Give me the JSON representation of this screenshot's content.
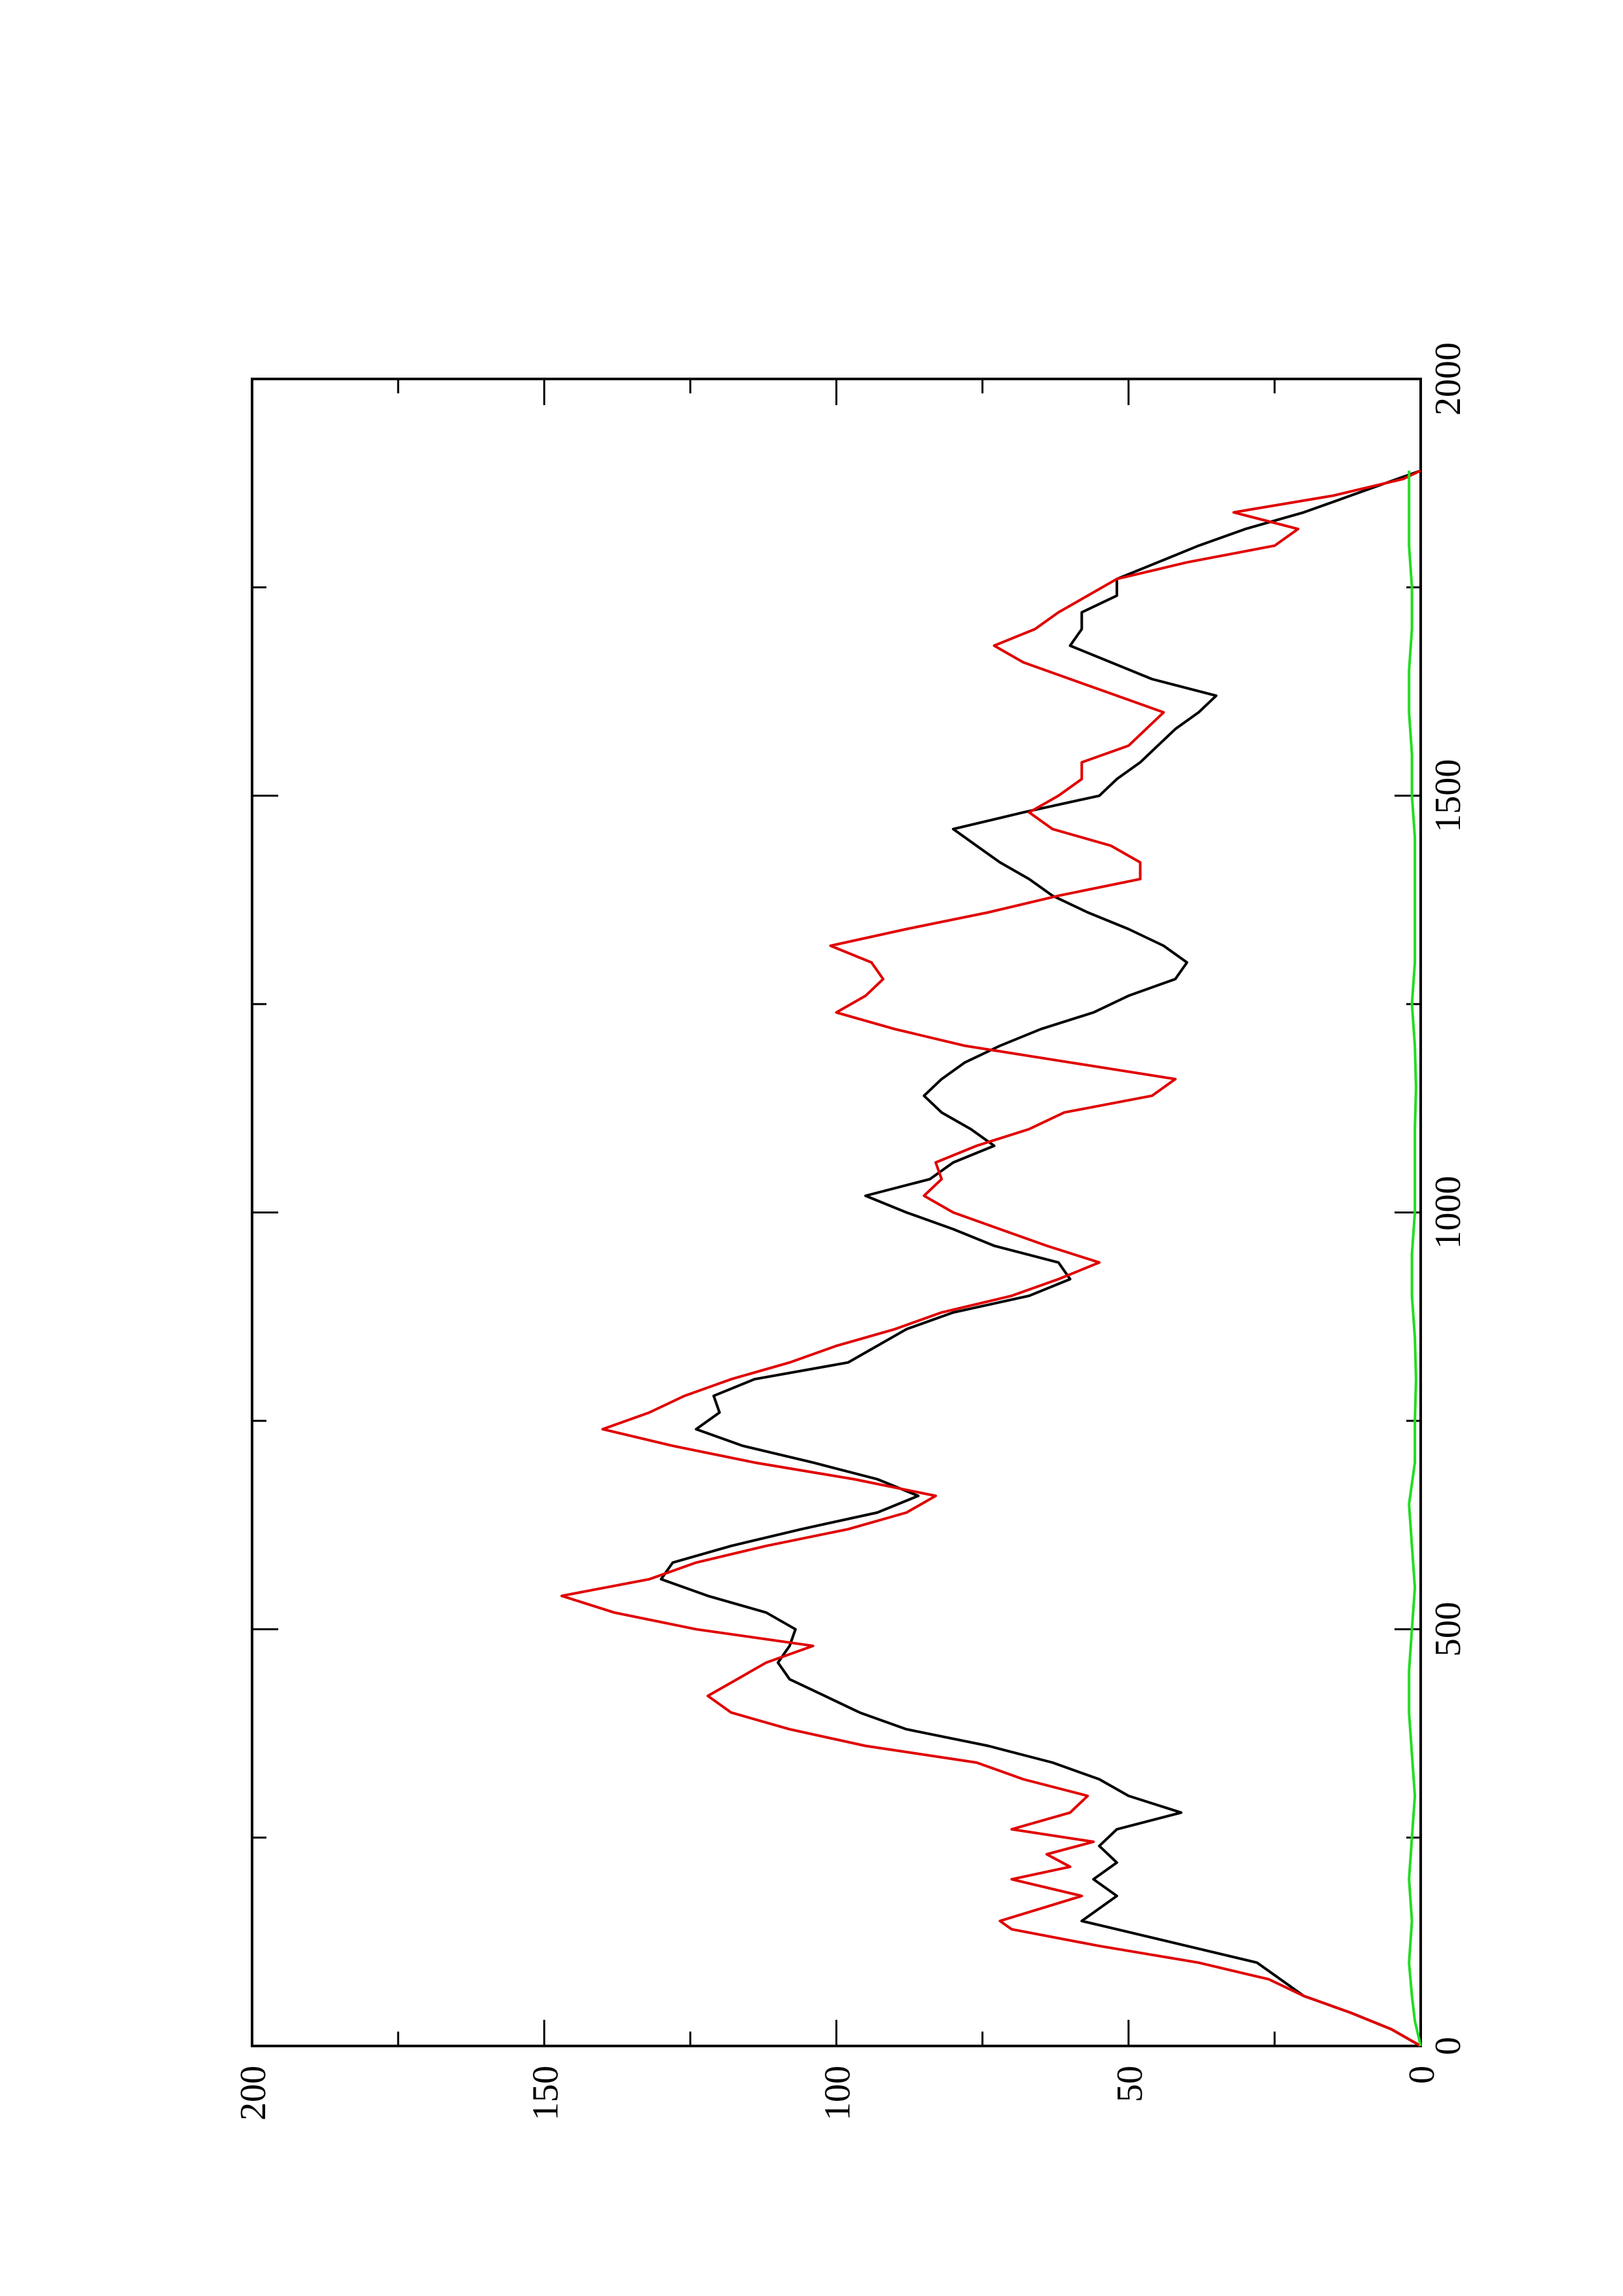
{
  "chart_data": {
    "type": "line",
    "orientation": "rotated-90-ccw",
    "title": "",
    "xlabel": "",
    "ylabel": "",
    "xlim": [
      0,
      2000
    ],
    "ylim": [
      0,
      200
    ],
    "x_ticks": [
      0,
      500,
      1000,
      1500,
      2000
    ],
    "x_tick_labels": [
      "0",
      "500",
      "1000",
      "1500",
      "2000"
    ],
    "y_ticks": [
      0,
      50,
      100,
      150,
      200
    ],
    "y_tick_labels": [
      "0",
      "50",
      "100",
      "150",
      "200"
    ],
    "grid": false,
    "legend": "none",
    "series": [
      {
        "color": "#000000",
        "points": [
          [
            0,
            0
          ],
          [
            20,
            5
          ],
          [
            40,
            12
          ],
          [
            60,
            20
          ],
          [
            75,
            23
          ],
          [
            100,
            28
          ],
          [
            120,
            40
          ],
          [
            140,
            52
          ],
          [
            150,
            58
          ],
          [
            165,
            55
          ],
          [
            180,
            52
          ],
          [
            200,
            56
          ],
          [
            220,
            52
          ],
          [
            240,
            55
          ],
          [
            260,
            52
          ],
          [
            280,
            41
          ],
          [
            300,
            50
          ],
          [
            320,
            55
          ],
          [
            340,
            63
          ],
          [
            360,
            74
          ],
          [
            380,
            88
          ],
          [
            400,
            96
          ],
          [
            420,
            102
          ],
          [
            440,
            108
          ],
          [
            460,
            110
          ],
          [
            480,
            108
          ],
          [
            500,
            107
          ],
          [
            520,
            112
          ],
          [
            540,
            122
          ],
          [
            560,
            130
          ],
          [
            580,
            128
          ],
          [
            600,
            118
          ],
          [
            620,
            106
          ],
          [
            640,
            93
          ],
          [
            660,
            86
          ],
          [
            680,
            93
          ],
          [
            700,
            104
          ],
          [
            720,
            116
          ],
          [
            740,
            124
          ],
          [
            760,
            120
          ],
          [
            780,
            121
          ],
          [
            800,
            114
          ],
          [
            820,
            98
          ],
          [
            840,
            93
          ],
          [
            860,
            88
          ],
          [
            880,
            80
          ],
          [
            900,
            67
          ],
          [
            920,
            60
          ],
          [
            940,
            62
          ],
          [
            960,
            73
          ],
          [
            980,
            80
          ],
          [
            1000,
            88
          ],
          [
            1020,
            95
          ],
          [
            1040,
            84
          ],
          [
            1060,
            80
          ],
          [
            1080,
            73
          ],
          [
            1100,
            77
          ],
          [
            1120,
            82
          ],
          [
            1140,
            85
          ],
          [
            1160,
            82
          ],
          [
            1180,
            78
          ],
          [
            1200,
            72
          ],
          [
            1220,
            65
          ],
          [
            1240,
            56
          ],
          [
            1260,
            50
          ],
          [
            1280,
            42
          ],
          [
            1300,
            40
          ],
          [
            1320,
            44
          ],
          [
            1340,
            50
          ],
          [
            1360,
            57
          ],
          [
            1380,
            63
          ],
          [
            1400,
            67
          ],
          [
            1420,
            72
          ],
          [
            1440,
            76
          ],
          [
            1460,
            80
          ],
          [
            1480,
            68
          ],
          [
            1500,
            55
          ],
          [
            1520,
            52
          ],
          [
            1540,
            48
          ],
          [
            1560,
            45
          ],
          [
            1580,
            42
          ],
          [
            1600,
            38
          ],
          [
            1620,
            35
          ],
          [
            1640,
            46
          ],
          [
            1660,
            53
          ],
          [
            1680,
            60
          ],
          [
            1700,
            58
          ],
          [
            1720,
            58
          ],
          [
            1740,
            52
          ],
          [
            1760,
            52
          ],
          [
            1780,
            45
          ],
          [
            1800,
            38
          ],
          [
            1820,
            30
          ],
          [
            1840,
            20
          ],
          [
            1860,
            12
          ],
          [
            1880,
            4
          ],
          [
            1890,
            0
          ]
        ]
      },
      {
        "color": "#e00000",
        "points": [
          [
            0,
            0
          ],
          [
            20,
            5
          ],
          [
            40,
            12
          ],
          [
            60,
            20
          ],
          [
            80,
            26
          ],
          [
            100,
            38
          ],
          [
            120,
            55
          ],
          [
            140,
            70
          ],
          [
            150,
            72
          ],
          [
            165,
            65
          ],
          [
            180,
            58
          ],
          [
            200,
            70
          ],
          [
            215,
            60
          ],
          [
            230,
            64
          ],
          [
            245,
            56
          ],
          [
            260,
            70
          ],
          [
            280,
            60
          ],
          [
            300,
            57
          ],
          [
            320,
            68
          ],
          [
            340,
            76
          ],
          [
            360,
            95
          ],
          [
            380,
            108
          ],
          [
            400,
            118
          ],
          [
            420,
            122
          ],
          [
            440,
            117
          ],
          [
            460,
            112
          ],
          [
            480,
            104
          ],
          [
            500,
            124
          ],
          [
            520,
            138
          ],
          [
            540,
            147
          ],
          [
            560,
            132
          ],
          [
            580,
            124
          ],
          [
            600,
            112
          ],
          [
            620,
            98
          ],
          [
            640,
            88
          ],
          [
            660,
            83
          ],
          [
            680,
            97
          ],
          [
            700,
            114
          ],
          [
            720,
            128
          ],
          [
            740,
            140
          ],
          [
            760,
            132
          ],
          [
            780,
            126
          ],
          [
            800,
            118
          ],
          [
            820,
            108
          ],
          [
            840,
            100
          ],
          [
            860,
            90
          ],
          [
            880,
            82
          ],
          [
            900,
            70
          ],
          [
            920,
            62
          ],
          [
            940,
            55
          ],
          [
            960,
            64
          ],
          [
            980,
            72
          ],
          [
            1000,
            80
          ],
          [
            1020,
            85
          ],
          [
            1040,
            82
          ],
          [
            1060,
            83
          ],
          [
            1080,
            76
          ],
          [
            1100,
            67
          ],
          [
            1120,
            61
          ],
          [
            1140,
            46
          ],
          [
            1160,
            42
          ],
          [
            1180,
            60
          ],
          [
            1200,
            78
          ],
          [
            1220,
            90
          ],
          [
            1240,
            100
          ],
          [
            1260,
            95
          ],
          [
            1280,
            92
          ],
          [
            1300,
            94
          ],
          [
            1320,
            101
          ],
          [
            1340,
            88
          ],
          [
            1360,
            74
          ],
          [
            1380,
            62
          ],
          [
            1400,
            48
          ],
          [
            1420,
            48
          ],
          [
            1440,
            53
          ],
          [
            1460,
            63
          ],
          [
            1480,
            67
          ],
          [
            1500,
            62
          ],
          [
            1520,
            58
          ],
          [
            1540,
            58
          ],
          [
            1560,
            50
          ],
          [
            1580,
            47
          ],
          [
            1600,
            44
          ],
          [
            1620,
            52
          ],
          [
            1640,
            60
          ],
          [
            1660,
            68
          ],
          [
            1680,
            73
          ],
          [
            1700,
            66
          ],
          [
            1720,
            62
          ],
          [
            1740,
            57
          ],
          [
            1760,
            52
          ],
          [
            1780,
            40
          ],
          [
            1800,
            25
          ],
          [
            1820,
            21
          ],
          [
            1840,
            32
          ],
          [
            1860,
            15
          ],
          [
            1880,
            3
          ],
          [
            1890,
            0
          ]
        ]
      },
      {
        "color": "#22dd22",
        "points": [
          [
            0,
            0
          ],
          [
            30,
            1
          ],
          [
            60,
            1.5
          ],
          [
            100,
            2
          ],
          [
            150,
            1.5
          ],
          [
            200,
            2
          ],
          [
            250,
            1.5
          ],
          [
            300,
            1
          ],
          [
            350,
            1.5
          ],
          [
            400,
            2
          ],
          [
            450,
            2
          ],
          [
            500,
            1.5
          ],
          [
            550,
            1
          ],
          [
            600,
            1.5
          ],
          [
            650,
            2
          ],
          [
            700,
            1
          ],
          [
            750,
            1
          ],
          [
            800,
            0.8
          ],
          [
            850,
            1
          ],
          [
            900,
            1.5
          ],
          [
            950,
            1.5
          ],
          [
            1000,
            1
          ],
          [
            1050,
            1
          ],
          [
            1100,
            1
          ],
          [
            1150,
            0.8
          ],
          [
            1200,
            1
          ],
          [
            1250,
            1.5
          ],
          [
            1300,
            1
          ],
          [
            1350,
            1
          ],
          [
            1400,
            1
          ],
          [
            1450,
            1
          ],
          [
            1500,
            1.5
          ],
          [
            1550,
            1.5
          ],
          [
            1600,
            2
          ],
          [
            1650,
            2
          ],
          [
            1700,
            1.5
          ],
          [
            1750,
            1.5
          ],
          [
            1800,
            2
          ],
          [
            1850,
            2
          ],
          [
            1890,
            2
          ]
        ]
      }
    ]
  }
}
